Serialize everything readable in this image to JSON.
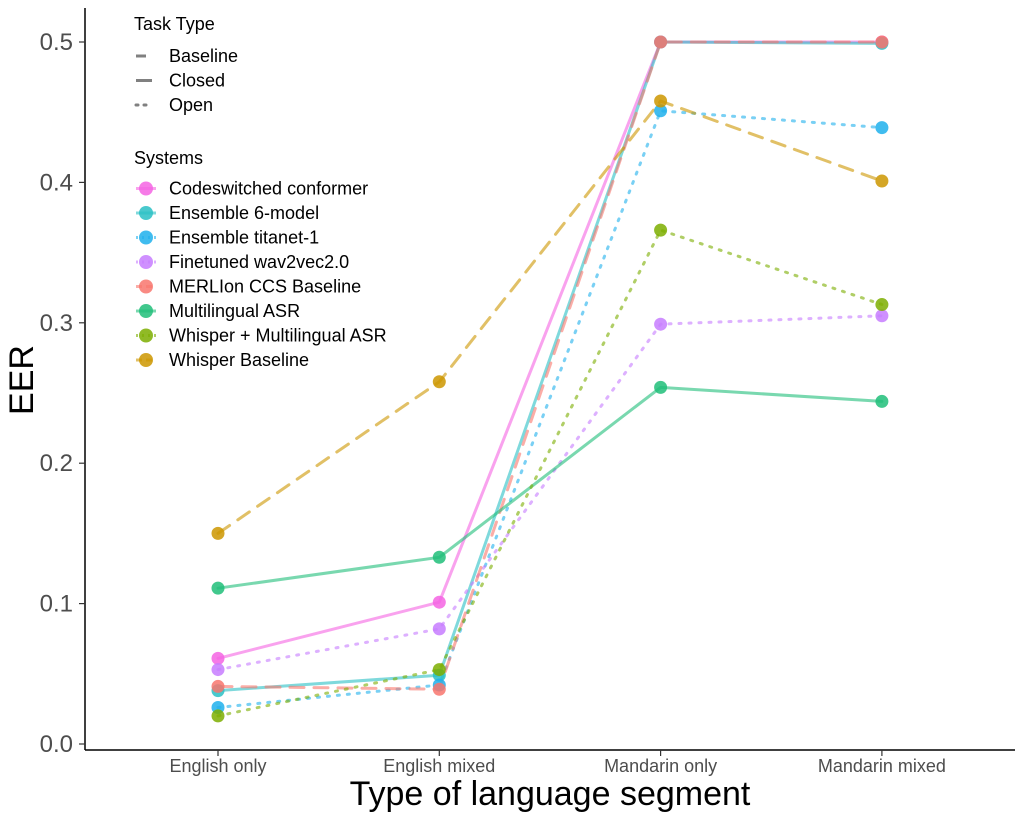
{
  "chart_data": {
    "type": "line",
    "title": "",
    "xlabel": "Type of language segment",
    "ylabel": "EER",
    "categories": [
      "English only",
      "English mixed",
      "Mandarin only",
      "Mandarin mixed"
    ],
    "ylim": [
      0,
      0.52
    ],
    "yticks": [
      "0.0",
      "0.1",
      "0.2",
      "0.3",
      "0.4",
      "0.5"
    ],
    "grid": false,
    "legend": {
      "placement": "top-left",
      "task_type_title": "Task Type",
      "task_types": [
        {
          "name": "Baseline",
          "dash": "dashed"
        },
        {
          "name": "Closed",
          "dash": "solid"
        },
        {
          "name": "Open",
          "dash": "dotted"
        }
      ],
      "systems_title": "Systems"
    },
    "series": [
      {
        "name": "Codeswitched conformer",
        "task": "Closed",
        "color": "#F564E3",
        "values": [
          0.061,
          0.101,
          0.5,
          0.5
        ]
      },
      {
        "name": "Ensemble 6-model",
        "task": "Closed",
        "color": "#29BFC4",
        "values": [
          0.038,
          0.049,
          0.5,
          0.499
        ]
      },
      {
        "name": "Ensemble titanet-1",
        "task": "Open",
        "color": "#1FB0EC",
        "values": [
          0.026,
          0.042,
          0.451,
          0.439
        ]
      },
      {
        "name": "Finetuned wav2vec2.0",
        "task": "Open",
        "color": "#C77CFF",
        "values": [
          0.053,
          0.082,
          0.299,
          0.305
        ]
      },
      {
        "name": "MERLIon CCS Baseline",
        "task": "Baseline",
        "color": "#F8766D",
        "values": [
          0.041,
          0.039,
          0.5,
          0.5
        ]
      },
      {
        "name": "Multilingual ASR",
        "task": "Closed",
        "color": "#20BE79",
        "values": [
          0.111,
          0.133,
          0.254,
          0.244
        ]
      },
      {
        "name": "Whisper + Multilingual ASR",
        "task": "Open",
        "color": "#7CAE00",
        "values": [
          0.02,
          0.053,
          0.366,
          0.313
        ]
      },
      {
        "name": "Whisper Baseline",
        "task": "Baseline",
        "color": "#CD9600",
        "values": [
          0.15,
          0.258,
          0.458,
          0.401
        ]
      }
    ]
  }
}
